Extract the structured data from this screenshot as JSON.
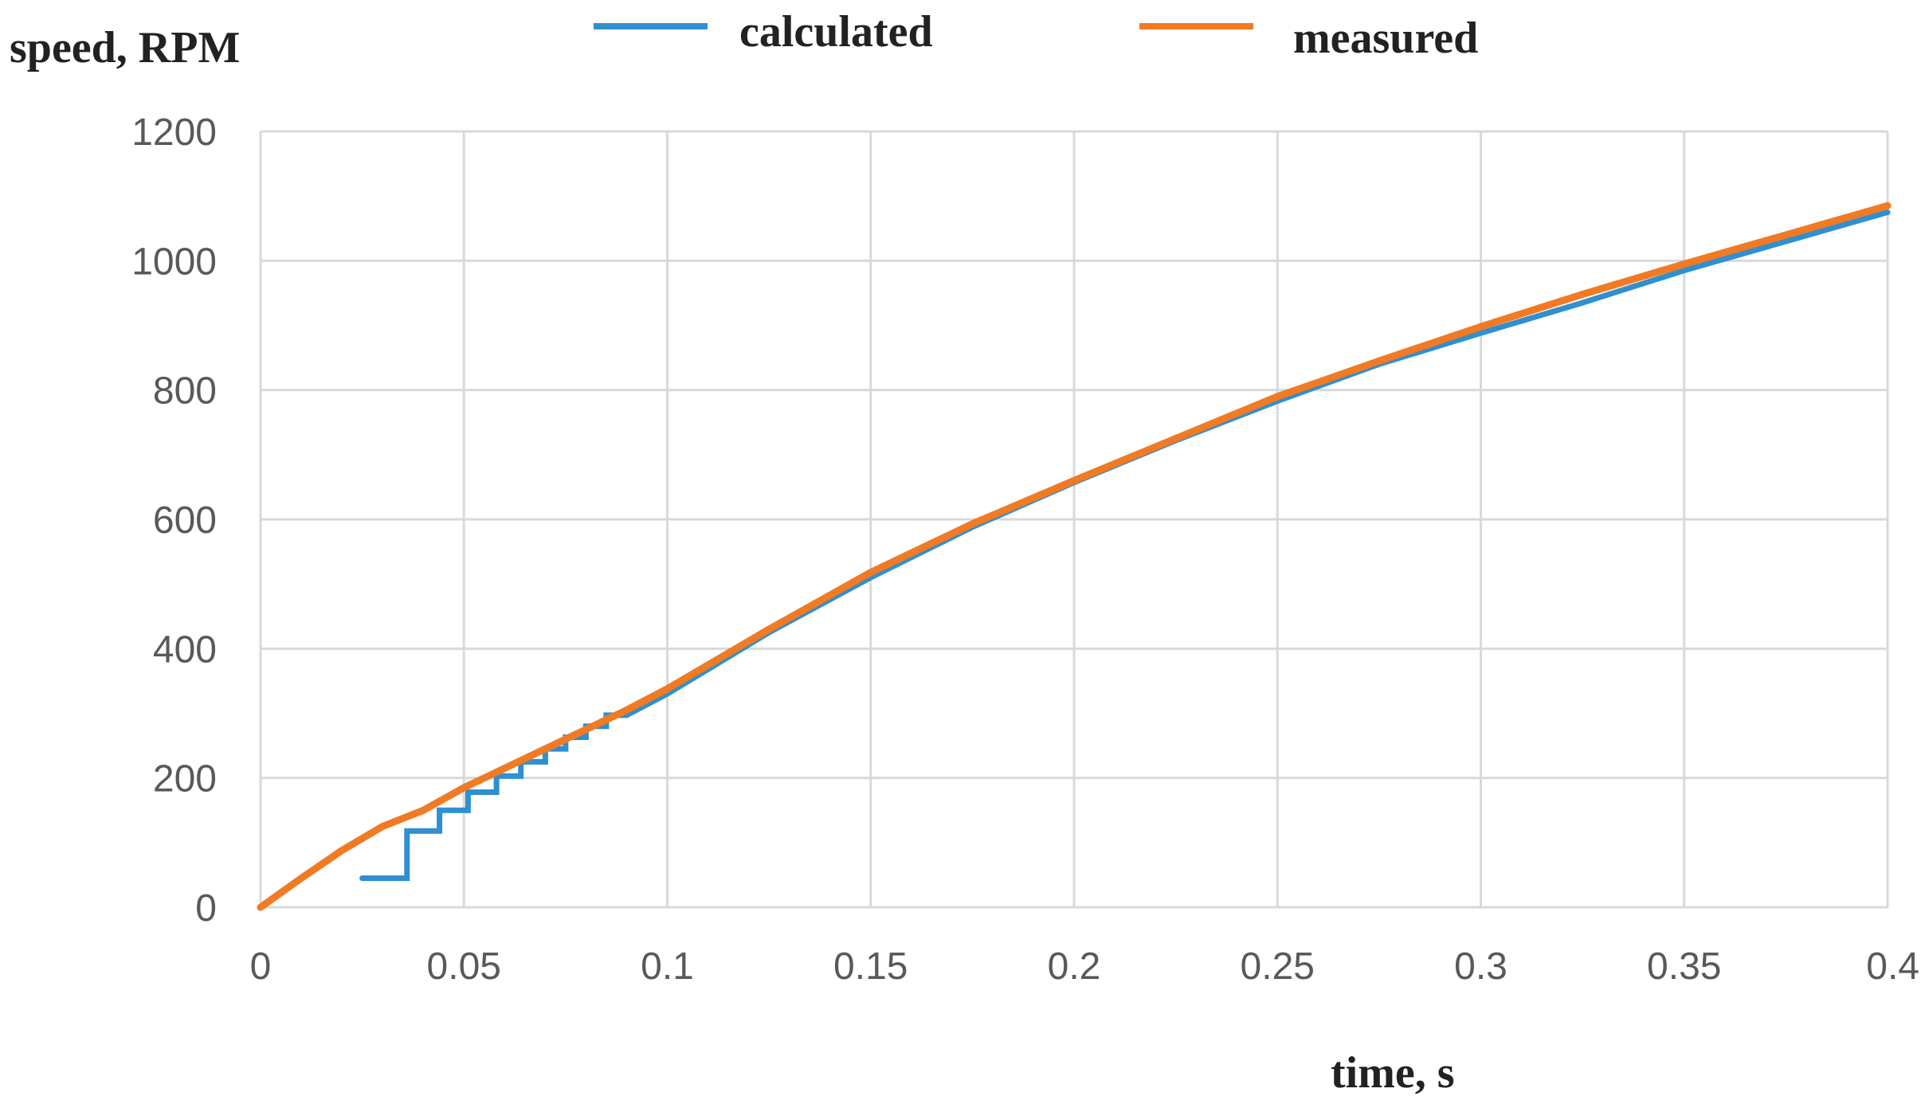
{
  "chart_data": {
    "type": "line",
    "title": "",
    "xlabel": "time, s",
    "ylabel": "speed, RPM",
    "xlim": [
      0,
      0.4
    ],
    "ylim": [
      0,
      1200
    ],
    "xticks": [
      0,
      0.05,
      0.1,
      0.15,
      0.2,
      0.25,
      0.3,
      0.35,
      0.4
    ],
    "xtick_labels": [
      "0",
      "0.05",
      "0.1",
      "0.15",
      "0.2",
      "0.25",
      "0.3",
      "0.35",
      "0.4"
    ],
    "yticks": [
      0,
      200,
      400,
      600,
      800,
      1000,
      1200
    ],
    "ytick_labels": [
      "0",
      "200",
      "400",
      "600",
      "800",
      "1000",
      "1200"
    ],
    "grid": true,
    "legend_position": "top",
    "series": [
      {
        "name": "calculated",
        "color": "#2f8fd0",
        "step": true,
        "x": [
          0.025,
          0.036,
          0.036,
          0.044,
          0.044,
          0.051,
          0.051,
          0.058,
          0.058,
          0.064,
          0.064,
          0.07,
          0.07,
          0.075,
          0.075,
          0.08,
          0.08,
          0.085,
          0.085,
          0.09,
          0.1,
          0.125,
          0.15,
          0.175,
          0.2,
          0.225,
          0.25,
          0.275,
          0.3,
          0.325,
          0.35,
          0.375,
          0.4
        ],
        "y": [
          45,
          45,
          118,
          118,
          150,
          150,
          178,
          178,
          203,
          203,
          225,
          225,
          245,
          245,
          263,
          263,
          280,
          280,
          297,
          297,
          330,
          425,
          510,
          588,
          657,
          722,
          783,
          840,
          888,
          935,
          985,
          1030,
          1075
        ]
      },
      {
        "name": "measured",
        "color": "#f07b24",
        "step": false,
        "x": [
          0,
          0.01,
          0.02,
          0.03,
          0.04,
          0.05,
          0.06,
          0.07,
          0.08,
          0.09,
          0.1,
          0.125,
          0.15,
          0.175,
          0.2,
          0.225,
          0.25,
          0.275,
          0.3,
          0.325,
          0.35,
          0.375,
          0.4
        ],
        "y": [
          0,
          45,
          88,
          125,
          150,
          185,
          215,
          245,
          275,
          305,
          338,
          430,
          518,
          593,
          660,
          725,
          790,
          845,
          898,
          948,
          995,
          1040,
          1085
        ]
      }
    ]
  }
}
